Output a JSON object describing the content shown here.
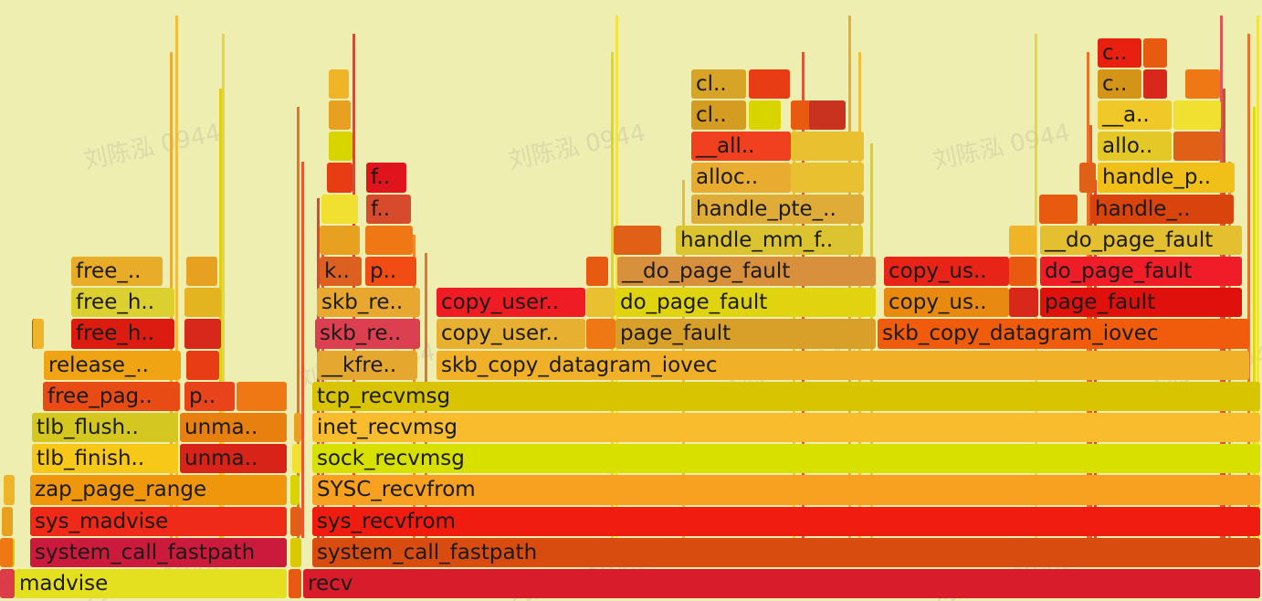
{
  "watermark": "刘陈泓 0944",
  "palette": [
    "#e8a020",
    "#f0b428",
    "#dcc800",
    "#e0d030",
    "#e85a10",
    "#e83c14",
    "#d8281c",
    "#dc3c48",
    "#c8321e",
    "#f07814",
    "#e06018",
    "#d8d400",
    "#f0e030",
    "#e4b420",
    "#e8c030",
    "#d04020"
  ],
  "frames": [
    {
      "id": "madvise",
      "label": "madvise",
      "color": "#e4e020"
    },
    {
      "id": "recv",
      "label": "recv",
      "color": "#d81c2c"
    },
    {
      "id": "system_call_fastpath_1",
      "label": "system_call_fastpath",
      "color": "#cc1a3c"
    },
    {
      "id": "system_call_fastpath_2",
      "label": "system_call_fastpath",
      "color": "#d84c10"
    },
    {
      "id": "sys_madvise",
      "label": "sys_madvise",
      "color": "#f02a18"
    },
    {
      "id": "sys_recvfrom",
      "label": "sys_recvfrom",
      "color": "#f01c10"
    },
    {
      "id": "zap_page_range",
      "label": "zap_page_range",
      "color": "#f0960c"
    },
    {
      "id": "SYSC_recvfrom",
      "label": "SYSC_recvfrom",
      "color": "#f8a020"
    },
    {
      "id": "tlb_finish",
      "label": "tlb_finish..",
      "color": "#f8c818"
    },
    {
      "id": "unma_1",
      "label": "unma..",
      "color": "#d82418"
    },
    {
      "id": "sock_recvmsg",
      "label": "sock_recvmsg",
      "color": "#d8e000"
    },
    {
      "id": "tlb_flush",
      "label": "tlb_flush..",
      "color": "#d4c820"
    },
    {
      "id": "unma_2",
      "label": "unma..",
      "color": "#e88010"
    },
    {
      "id": "inet_recvmsg",
      "label": "inet_recvmsg",
      "color": "#f8bc2c"
    },
    {
      "id": "free_pag",
      "label": "free_pag..",
      "color": "#e84c14"
    },
    {
      "id": "p_1",
      "label": "p..",
      "color": "#e8441c"
    },
    {
      "id": "tcp_recvmsg",
      "label": "tcp_recvmsg",
      "color": "#d8c400"
    },
    {
      "id": "release",
      "label": "release_..",
      "color": "#f0a414"
    },
    {
      "id": "kfre",
      "label": "__kfre..",
      "color": "#e4a830"
    },
    {
      "id": "skb_copy_datagram_iovec_1",
      "label": "skb_copy_datagram_iovec",
      "color": "#f0b028"
    },
    {
      "id": "free_h_1",
      "label": "free_h..",
      "color": "#dc1c10"
    },
    {
      "id": "skb_re_1",
      "label": "skb_re..",
      "color": "#dc4050"
    },
    {
      "id": "copy_user_1",
      "label": "copy_user..",
      "color": "#e8b030"
    },
    {
      "id": "page_fault_1",
      "label": "page_fault",
      "color": "#d8a028"
    },
    {
      "id": "skb_copy_datagram_iovec_2",
      "label": "skb_copy_datagram_iovec",
      "color": "#f05c0c"
    },
    {
      "id": "free_h_2",
      "label": "free_h..",
      "color": "#dcd030"
    },
    {
      "id": "skb_re_2",
      "label": "skb_re..",
      "color": "#e8a830"
    },
    {
      "id": "copy_user_2",
      "label": "copy_user..",
      "color": "#f01c24"
    },
    {
      "id": "do_page_fault_1",
      "label": "do_page_fault",
      "color": "#e0d410"
    },
    {
      "id": "copy_us_1",
      "label": "copy_us..",
      "color": "#e88a10"
    },
    {
      "id": "page_fault_2",
      "label": "page_fault",
      "color": "#e0100c"
    },
    {
      "id": "free_1",
      "label": "free_..",
      "color": "#e8ac28"
    },
    {
      "id": "k",
      "label": "k..",
      "color": "#dc6020"
    },
    {
      "id": "p_2",
      "label": "p..",
      "color": "#f04c14"
    },
    {
      "id": "do_page_fault_2",
      "label": "__do_page_fault",
      "color": "#d8903c"
    },
    {
      "id": "copy_us_2",
      "label": "copy_us..",
      "color": "#e82418"
    },
    {
      "id": "do_page_fault_3",
      "label": "do_page_fault",
      "color": "#f01c28"
    },
    {
      "id": "handle_mm_f",
      "label": "handle_mm_f..",
      "color": "#dcc430"
    },
    {
      "id": "do_page_fault_4",
      "label": "__do_page_fault",
      "color": "#e4c030"
    },
    {
      "id": "f_1",
      "label": "f..",
      "color": "#d84a2c"
    },
    {
      "id": "handle_pte",
      "label": "handle_pte_..",
      "color": "#e0ac38"
    },
    {
      "id": "handle_1",
      "label": "handle_..",
      "color": "#d8440c"
    },
    {
      "id": "f_2",
      "label": "f..",
      "color": "#e0141c"
    },
    {
      "id": "alloc",
      "label": "alloc..",
      "color": "#e8ac30"
    },
    {
      "id": "handle_p",
      "label": "handle_p..",
      "color": "#f0c018"
    },
    {
      "id": "all",
      "label": "__all..",
      "color": "#f04020"
    },
    {
      "id": "allo",
      "label": "allo..",
      "color": "#e4c828"
    },
    {
      "id": "cl_1",
      "label": "cl..",
      "color": "#d49c20"
    },
    {
      "id": "a",
      "label": "__a..",
      "color": "#f0c828"
    },
    {
      "id": "cl_2",
      "label": "cl..",
      "color": "#d8a428"
    },
    {
      "id": "c_1",
      "label": "c..",
      "color": "#d49418"
    },
    {
      "id": "c_2",
      "label": "c..",
      "color": "#e82010"
    }
  ]
}
